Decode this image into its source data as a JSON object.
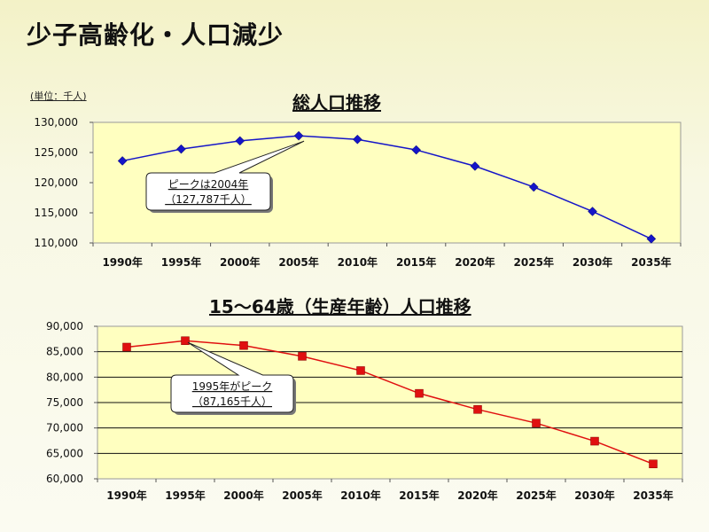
{
  "page_title": "少子高齢化・人口減少",
  "unit_label": "(単位：千人)",
  "chart_data": [
    {
      "type": "line",
      "title": "総人口推移",
      "x": [
        "1990年",
        "1995年",
        "2000年",
        "2005年",
        "2010年",
        "2015年",
        "2020年",
        "2025年",
        "2030年",
        "2035年"
      ],
      "series": [
        {
          "name": "",
          "values": [
            123611,
            125570,
            126926,
            127768,
            127176,
            125430,
            122735,
            119270,
            115224,
            110679
          ]
        }
      ],
      "yticks": [
        "130,000",
        "125,000",
        "120,000",
        "115,000",
        "110,000"
      ],
      "ylim": [
        110000,
        130000
      ],
      "grid": false,
      "annotation": {
        "line1": "ピークは2004年",
        "line2": "（127,787千人）",
        "point_index": 3
      },
      "color": "#1515c8",
      "plot_bg": "#ffffc0"
    },
    {
      "type": "line",
      "title": "15～64歳（生産年齢）人口推移",
      "x": [
        "1990年",
        "1995年",
        "2000年",
        "2005年",
        "2010年",
        "2015年",
        "2020年",
        "2025年",
        "2030年",
        "2035年"
      ],
      "series": [
        {
          "name": "",
          "values": [
            85904,
            87165,
            86220,
            84092,
            81285,
            76807,
            73635,
            70960,
            67404,
            62919
          ]
        }
      ],
      "yticks": [
        "90,000",
        "85,000",
        "80,000",
        "75,000",
        "70,000",
        "65,000",
        "60,000"
      ],
      "ylim": [
        60000,
        90000
      ],
      "grid": true,
      "annotation": {
        "line1": "1995年がピーク",
        "line2": "（87,165千人）",
        "point_index": 1
      },
      "color": "#e01010",
      "plot_bg": "#ffffc0"
    }
  ]
}
